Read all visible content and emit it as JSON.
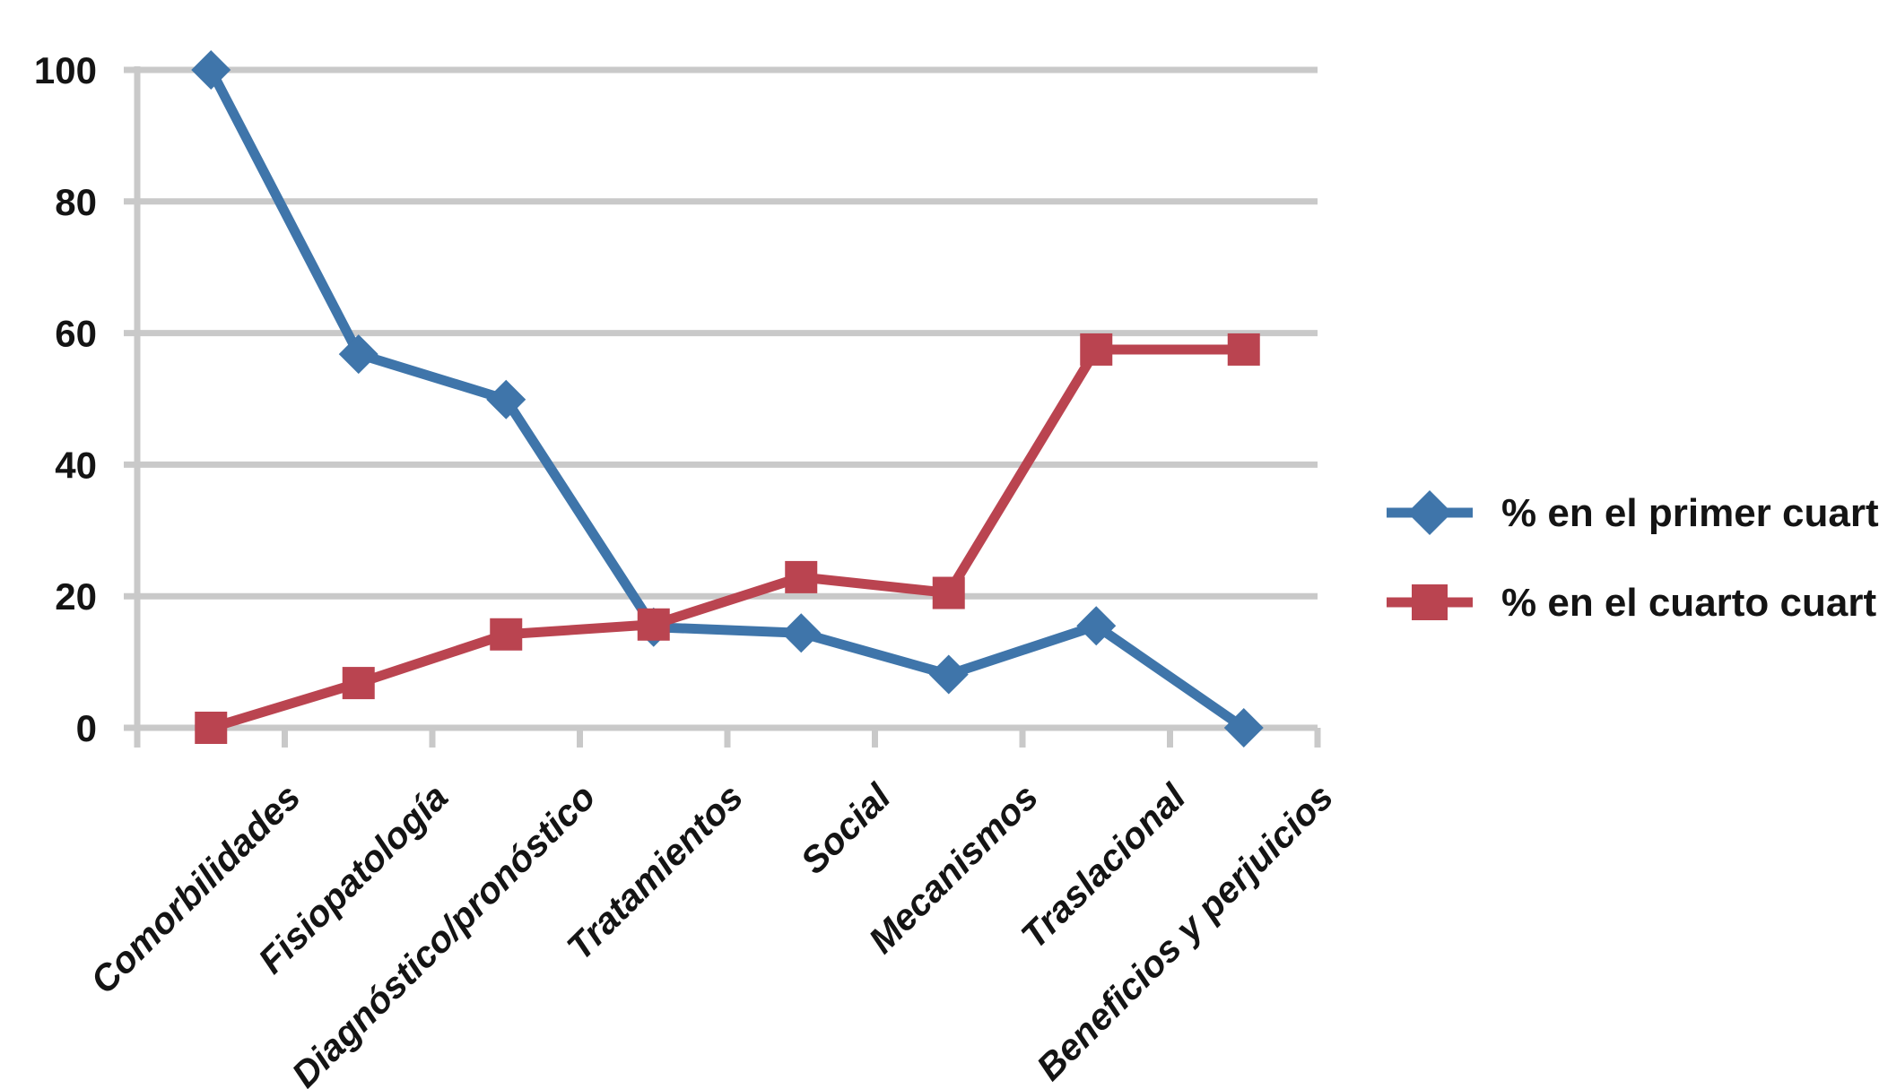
{
  "chart_data": {
    "type": "line",
    "title": "",
    "xlabel": "",
    "ylabel": "",
    "categories": [
      "Comorbilidades",
      "Fisiopatología",
      "Diagnóstico/pronóstico",
      "Tratamientos",
      "Social",
      "Mecanismos",
      "Traslacional",
      "Beneficios y perjuicios"
    ],
    "series": [
      {
        "name": "% en el primer cuartil",
        "marker": "diamond",
        "color": "#3F75AA",
        "values": [
          100,
          56.8,
          49.9,
          15.3,
          14.4,
          8.1,
          15.5,
          0
        ]
      },
      {
        "name": "% en el cuarto cuartil",
        "marker": "square",
        "color": "#BA4450",
        "values": [
          0,
          6.8,
          14.2,
          15.7,
          22.9,
          20.5,
          57.5,
          57.5
        ]
      }
    ],
    "y_ticks": [
      0,
      20,
      40,
      60,
      80,
      100
    ],
    "ylim": [
      0,
      100
    ],
    "grid": true,
    "gridline_color": "#C9C9C9",
    "axis_color": "#C9C9C9",
    "text_color": "#141414",
    "background": "#FFFFFF",
    "legend_position": "right"
  }
}
